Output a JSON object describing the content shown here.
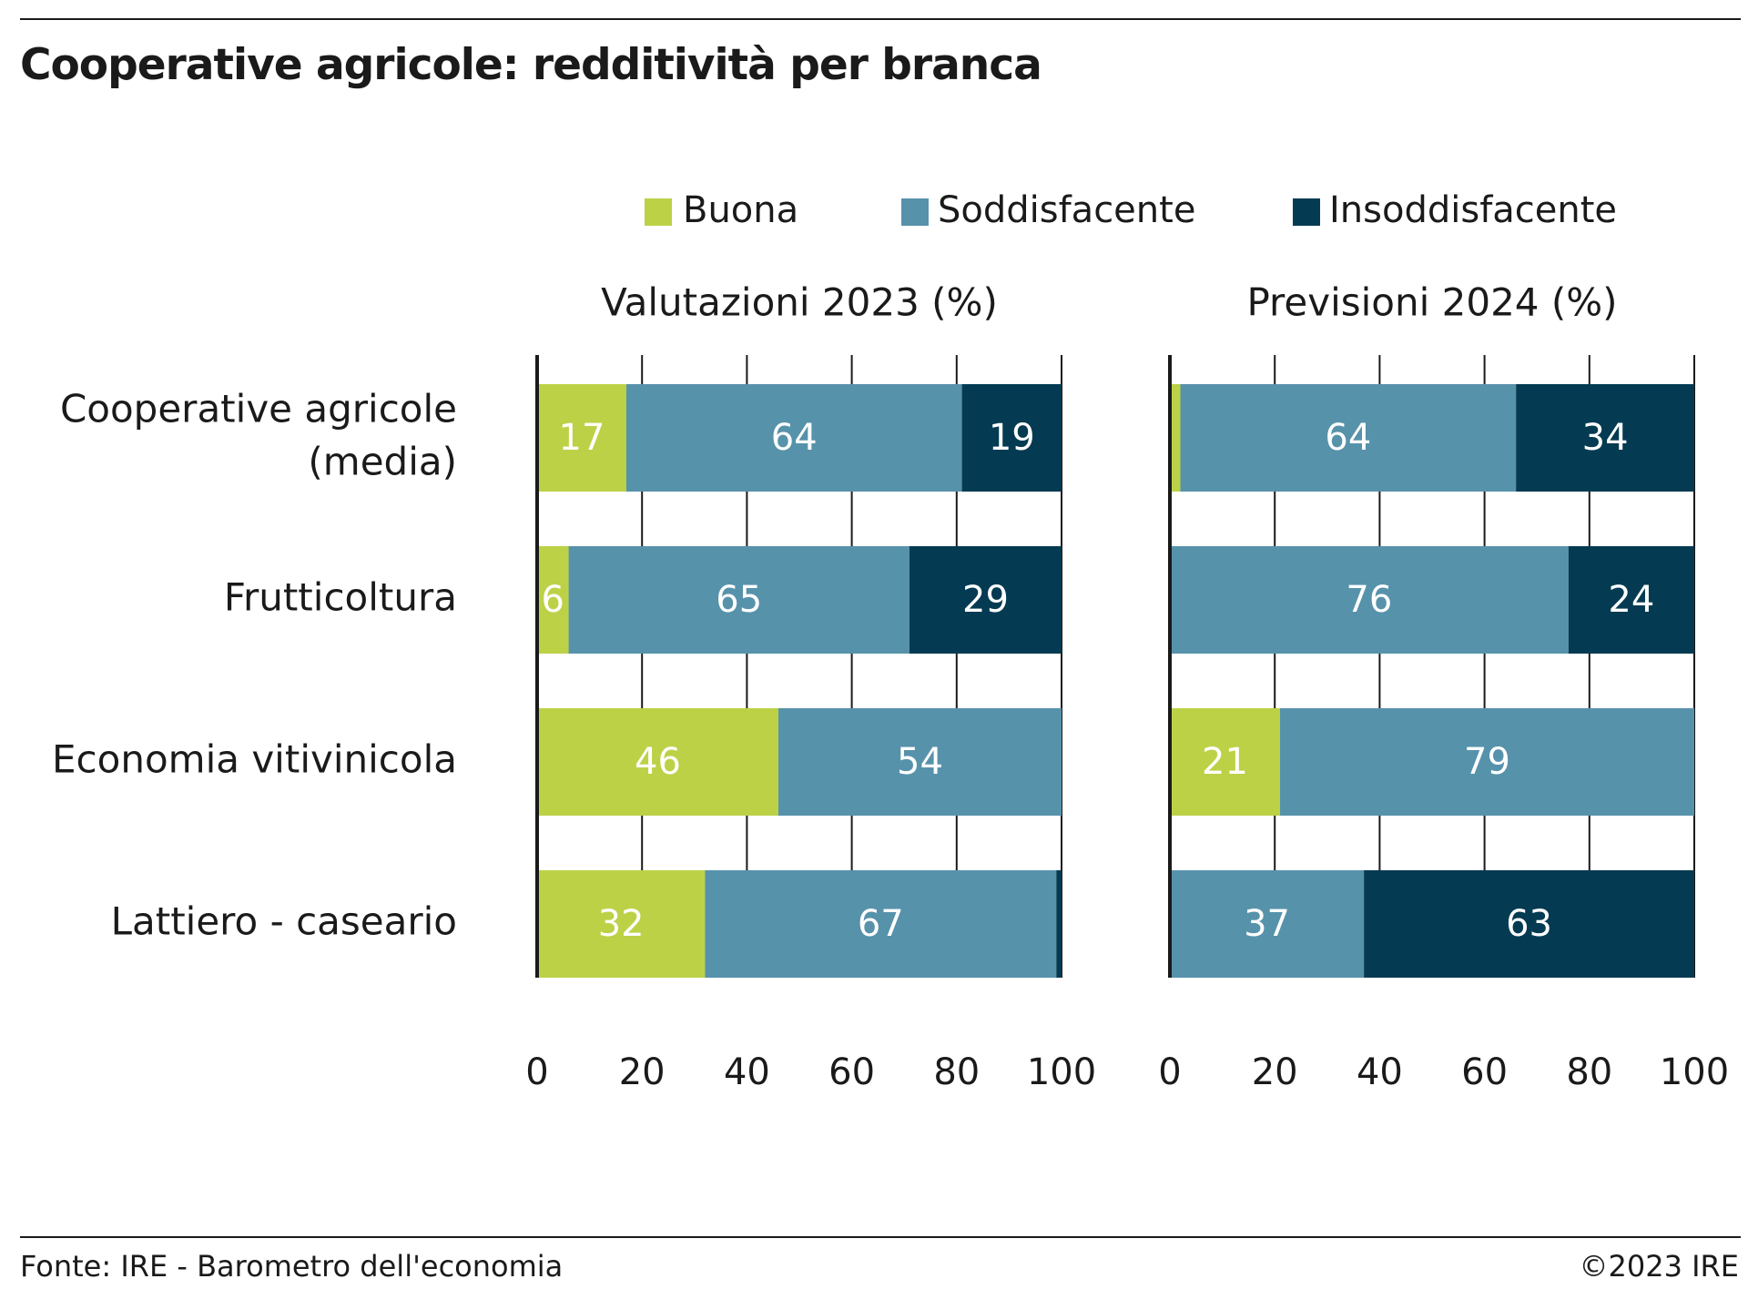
{
  "title": "Cooperative agricole: redditività per branca",
  "source": "Fonte: IRE - Barometro dell'economia",
  "copyright": "©2023 IRE",
  "chart_data": {
    "type": "bar",
    "orientation": "horizontal",
    "stacked": true,
    "categories": [
      [
        "Cooperative agricole",
        "(media)"
      ],
      [
        "Frutticoltura"
      ],
      [
        "Economia vitivinicola"
      ],
      [
        "Lattiero - caseario"
      ]
    ],
    "series_names": [
      "Buona",
      "Soddisfacente",
      "Insoddisfacente"
    ],
    "colors": [
      "#bdd147",
      "#5792ab",
      "#043b52"
    ],
    "value_label_colors": [
      "#ffffff",
      "#ffffff",
      "#ffffff"
    ],
    "xlim": [
      0,
      100
    ],
    "xticks": [
      0,
      20,
      40,
      60,
      80,
      100
    ],
    "legend_position": "top",
    "grid": "vertical ticks only",
    "panels": [
      {
        "title": "Valutazioni 2023 (%)",
        "series": [
          {
            "name": "Buona",
            "values": [
              17,
              6,
              46,
              32
            ],
            "labels": [
              "17",
              "6",
              "46",
              "32"
            ]
          },
          {
            "name": "Soddisfacente",
            "values": [
              64,
              65,
              54,
              67
            ],
            "labels": [
              "64",
              "65",
              "54",
              "67"
            ]
          },
          {
            "name": "Insoddisfacente",
            "values": [
              19,
              29,
              0,
              1
            ],
            "labels": [
              "19",
              "29",
              "",
              ""
            ]
          }
        ]
      },
      {
        "title": "Previsioni 2024 (%)",
        "series": [
          {
            "name": "Buona",
            "values": [
              2,
              0,
              21,
              0
            ],
            "labels": [
              "",
              "",
              "21",
              ""
            ]
          },
          {
            "name": "Soddisfacente",
            "values": [
              64,
              76,
              79,
              37
            ],
            "labels": [
              "64",
              "76",
              "79",
              "37"
            ]
          },
          {
            "name": "Insoddisfacente",
            "values": [
              34,
              24,
              0,
              63
            ],
            "labels": [
              "34",
              "24",
              "",
              "63"
            ]
          }
        ]
      }
    ]
  }
}
